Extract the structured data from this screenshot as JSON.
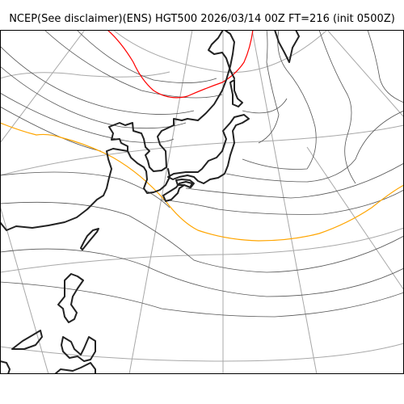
{
  "title": "NCEP(See disclaimer)(ENS) HGT500 2026/03/14 00Z FT=216 (init 0500Z)",
  "colors": {
    "grid": "#a8a8a8",
    "contour": "#555555",
    "contour_highlight_warm": "#ff0000",
    "contour_highlight_mid": "#ffa500",
    "coastline": "#222222",
    "frame": "#000000"
  }
}
